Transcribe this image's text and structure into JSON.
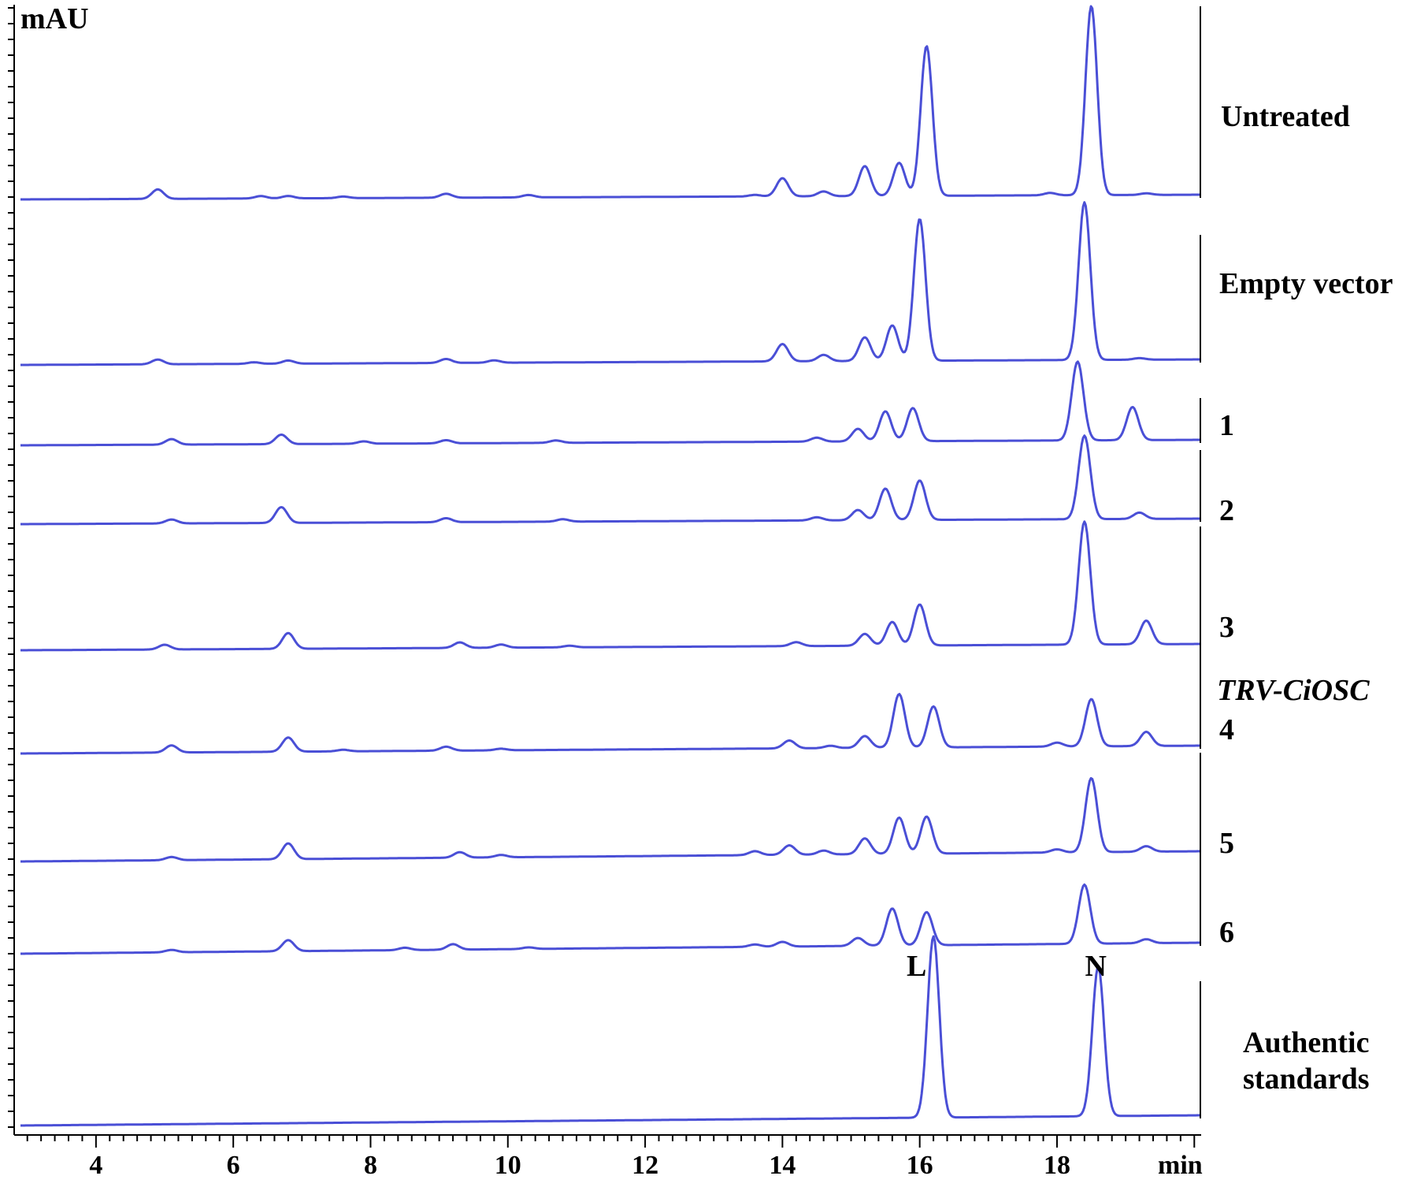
{
  "chart_data": {
    "type": "line",
    "title": "",
    "xlabel": "min",
    "ylabel": "mAU",
    "xlim": [
      2.9,
      20.1
    ],
    "xticks": [
      "4",
      "6",
      "8",
      "10",
      "12",
      "14",
      "16",
      "18"
    ],
    "line_color": "#4a4fd6",
    "traces": [
      {
        "label": "Untreated",
        "baseline": 0,
        "peaks": [
          [
            4.9,
            0.12
          ],
          [
            6.4,
            0.03
          ],
          [
            6.8,
            0.03
          ],
          [
            7.6,
            0.02
          ],
          [
            9.1,
            0.05
          ],
          [
            10.3,
            0.03
          ],
          [
            13.6,
            0.02
          ],
          [
            14.0,
            0.23
          ],
          [
            14.6,
            0.06
          ],
          [
            15.2,
            0.38
          ],
          [
            15.7,
            0.42
          ],
          [
            16.1,
            1.9
          ],
          [
            17.9,
            0.03
          ],
          [
            18.5,
            2.4
          ],
          [
            19.3,
            0.02
          ]
        ]
      },
      {
        "label": "Empty vector",
        "baseline": 0,
        "peaks": [
          [
            4.9,
            0.06
          ],
          [
            6.3,
            0.02
          ],
          [
            6.8,
            0.04
          ],
          [
            9.1,
            0.05
          ],
          [
            9.8,
            0.03
          ],
          [
            14.0,
            0.22
          ],
          [
            14.6,
            0.08
          ],
          [
            15.2,
            0.3
          ],
          [
            15.6,
            0.45
          ],
          [
            16.0,
            1.8
          ],
          [
            18.4,
            2.0
          ],
          [
            19.2,
            0.02
          ]
        ]
      },
      {
        "label": "1",
        "baseline": 0,
        "peaks": [
          [
            5.1,
            0.07
          ],
          [
            6.7,
            0.12
          ],
          [
            7.9,
            0.03
          ],
          [
            9.1,
            0.04
          ],
          [
            10.7,
            0.03
          ],
          [
            14.5,
            0.05
          ],
          [
            15.1,
            0.16
          ],
          [
            15.5,
            0.38
          ],
          [
            15.9,
            0.42
          ],
          [
            18.3,
            1.0
          ],
          [
            19.1,
            0.42
          ]
        ]
      },
      {
        "label": "2",
        "baseline": 0,
        "peaks": [
          [
            5.1,
            0.05
          ],
          [
            6.7,
            0.2
          ],
          [
            9.1,
            0.05
          ],
          [
            10.8,
            0.03
          ],
          [
            14.5,
            0.04
          ],
          [
            15.1,
            0.13
          ],
          [
            15.5,
            0.4
          ],
          [
            16.0,
            0.5
          ],
          [
            18.4,
            1.06
          ],
          [
            19.2,
            0.08
          ]
        ]
      },
      {
        "label": "3",
        "baseline": 0,
        "peaks": [
          [
            5.0,
            0.06
          ],
          [
            6.8,
            0.2
          ],
          [
            9.3,
            0.07
          ],
          [
            9.9,
            0.04
          ],
          [
            10.9,
            0.02
          ],
          [
            14.2,
            0.05
          ],
          [
            15.2,
            0.15
          ],
          [
            15.6,
            0.3
          ],
          [
            16.0,
            0.52
          ],
          [
            18.4,
            1.56
          ],
          [
            19.3,
            0.3
          ]
        ]
      },
      {
        "label": "4",
        "baseline": 0,
        "peaks": [
          [
            5.1,
            0.09
          ],
          [
            6.8,
            0.18
          ],
          [
            7.6,
            0.02
          ],
          [
            9.1,
            0.05
          ],
          [
            9.9,
            0.02
          ],
          [
            14.1,
            0.1
          ],
          [
            14.7,
            0.03
          ],
          [
            15.2,
            0.15
          ],
          [
            15.7,
            0.68
          ],
          [
            16.2,
            0.52
          ],
          [
            18.0,
            0.05
          ],
          [
            18.5,
            0.6
          ],
          [
            19.3,
            0.18
          ]
        ]
      },
      {
        "label": "5",
        "baseline": 0,
        "peaks": [
          [
            5.1,
            0.04
          ],
          [
            6.8,
            0.2
          ],
          [
            9.3,
            0.07
          ],
          [
            9.9,
            0.03
          ],
          [
            13.6,
            0.05
          ],
          [
            14.1,
            0.12
          ],
          [
            14.6,
            0.05
          ],
          [
            15.2,
            0.2
          ],
          [
            15.7,
            0.46
          ],
          [
            16.1,
            0.47
          ],
          [
            18.0,
            0.04
          ],
          [
            18.5,
            0.94
          ],
          [
            19.3,
            0.07
          ]
        ]
      },
      {
        "label": "6",
        "baseline": 0,
        "peaks": [
          [
            5.1,
            0.03
          ],
          [
            6.8,
            0.14
          ],
          [
            8.5,
            0.03
          ],
          [
            9.2,
            0.07
          ],
          [
            10.3,
            0.02
          ],
          [
            13.6,
            0.03
          ],
          [
            14.0,
            0.06
          ],
          [
            15.1,
            0.1
          ],
          [
            15.6,
            0.47
          ],
          [
            16.1,
            0.42
          ],
          [
            18.4,
            0.75
          ],
          [
            19.3,
            0.05
          ]
        ]
      },
      {
        "label": "Authentic standards",
        "baseline": 0,
        "peaks": [
          [
            16.2,
            2.3
          ],
          [
            18.6,
            1.9
          ]
        ]
      }
    ],
    "group_label": "TRV-CiOSC",
    "peak_annotations": [
      {
        "text": "L",
        "x": 15.9
      },
      {
        "text": "N",
        "x": 18.5
      }
    ]
  }
}
